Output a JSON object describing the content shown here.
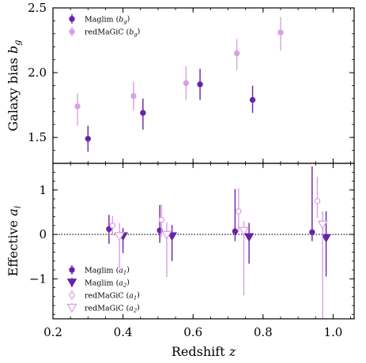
{
  "colors": {
    "maglim": "#6a22a8",
    "redmagic": "#d9a0e3",
    "zero_line": "#000000"
  },
  "xlabel": "Redshift z",
  "xlim": [
    0.2,
    1.06
  ],
  "xticks": [
    "0.2",
    "0.4",
    "0.6",
    "0.8",
    "1.0"
  ],
  "chart_data": [
    {
      "type": "scatter",
      "panel": "top",
      "ylabel": "Galaxy bias b_g",
      "ylim": [
        1.3,
        2.5
      ],
      "yticks": [
        "1.5",
        "2.0",
        "2.5"
      ],
      "legend": "top-left",
      "series": [
        {
          "name": "Maglim (b_g)",
          "marker": "filled-circle",
          "color": "#6a22a8",
          "x": [
            0.3,
            0.457,
            0.62,
            0.77
          ],
          "y": [
            1.49,
            1.69,
            1.91,
            1.79
          ],
          "yerr_low": [
            0.1,
            0.13,
            0.12,
            0.1
          ],
          "yerr_high": [
            0.1,
            0.11,
            0.12,
            0.11
          ]
        },
        {
          "name": "redMaGiC (b_g)",
          "marker": "filled-circle",
          "color": "#d9a0e3",
          "x": [
            0.27,
            0.43,
            0.58,
            0.725,
            0.85
          ],
          "y": [
            1.74,
            1.82,
            1.92,
            2.15,
            2.31
          ],
          "yerr_low": [
            0.15,
            0.11,
            0.13,
            0.13,
            0.14
          ],
          "yerr_high": [
            0.1,
            0.11,
            0.13,
            0.11,
            0.12
          ]
        }
      ]
    },
    {
      "type": "scatter",
      "panel": "bottom",
      "ylabel": "Effective a_i",
      "ylim": [
        -1.9,
        1.6
      ],
      "yticks": [
        "−1",
        "0",
        "1"
      ],
      "zero_line": "dotted",
      "legend": "bottom-left",
      "series": [
        {
          "name": "Maglim (a_1)",
          "marker": "filled-circle",
          "color": "#6a22a8",
          "x": [
            0.36,
            0.505,
            0.72,
            0.94
          ],
          "y": [
            0.12,
            0.09,
            0.07,
            0.05
          ],
          "yerr_low": [
            0.33,
            0.28,
            0.22,
            0.2
          ],
          "yerr_high": [
            0.32,
            0.57,
            0.95,
            1.48
          ]
        },
        {
          "name": "Maglim (a_2)",
          "marker": "filled-triangle-down",
          "color": "#6a22a8",
          "x": [
            0.4,
            0.54,
            0.76,
            0.98
          ],
          "y": [
            -0.04,
            -0.04,
            -0.06,
            -0.08
          ],
          "yerr_low": [
            0.38,
            0.56,
            0.6,
            0.87
          ],
          "yerr_high": [
            0.18,
            0.25,
            0.32,
            0.6
          ]
        },
        {
          "name": "redMaGiC (a_1)",
          "marker": "open-circle",
          "color": "#d9a0e3",
          "x": [
            0.37,
            0.51,
            0.73,
            0.955
          ],
          "y": [
            0.2,
            0.33,
            0.52,
            0.75
          ],
          "yerr_low": [
            0.22,
            0.38,
            0.47,
            0.38
          ],
          "yerr_high": [
            0.22,
            0.35,
            0.52,
            0.55
          ]
        },
        {
          "name": "redMaGiC (a_2)",
          "marker": "open-triangle-down",
          "color": "#d9a0e3",
          "x": [
            0.39,
            0.525,
            0.745,
            0.97
          ],
          "y": [
            -0.04,
            -0.01,
            0.08,
            0.22
          ],
          "yerr_low": [
            0.72,
            0.95,
            1.45,
            2.2
          ],
          "yerr_high": [
            0.3,
            0.28,
            0.22,
            0.3
          ]
        }
      ]
    }
  ]
}
